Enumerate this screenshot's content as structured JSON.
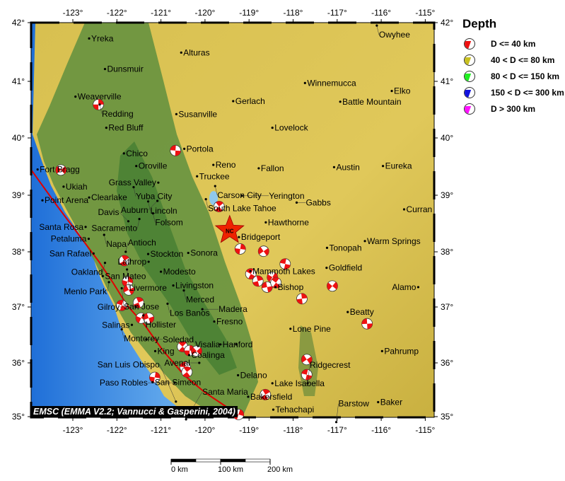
{
  "map": {
    "lon_ticks": [
      -123,
      -122,
      -121,
      -120,
      -119,
      -118,
      -117,
      -116,
      -115
    ],
    "lat_ticks": [
      42,
      41,
      40,
      39,
      38,
      37,
      36,
      35
    ],
    "lon_labels": [
      "-123°",
      "-122°",
      "-121°",
      "-120°",
      "-119°",
      "-118°",
      "-117°",
      "-116°",
      "-115°"
    ],
    "lat_labels": [
      "42°",
      "41°",
      "40°",
      "39°",
      "38°",
      "37°",
      "36°",
      "35°"
    ],
    "colors": {
      "ocean": "#3d8fe0",
      "land": "#d9c24a",
      "valley": "#5f8f3e",
      "fault": "#e00000",
      "event": "#ee1111",
      "station": "#ee2200"
    },
    "cities": [
      {
        "name": "Yreka",
        "lon": -122.63,
        "lat": 41.73
      },
      {
        "name": "Alturas",
        "lon": -120.54,
        "lat": 41.49
      },
      {
        "name": "Owyhee",
        "lon": -116.1,
        "lat": 41.95
      },
      {
        "name": "Dunsmuir",
        "lon": -122.27,
        "lat": 41.21
      },
      {
        "name": "Winnemucca",
        "lon": -117.73,
        "lat": 40.97
      },
      {
        "name": "Elko",
        "lon": -115.76,
        "lat": 40.83
      },
      {
        "name": "Weaverville",
        "lon": -122.94,
        "lat": 40.73
      },
      {
        "name": "Redding",
        "lon": -122.39,
        "lat": 40.59
      },
      {
        "name": "Gerlach",
        "lon": -119.36,
        "lat": 40.65
      },
      {
        "name": "Battle Mountain",
        "lon": -116.93,
        "lat": 40.64
      },
      {
        "name": "Susanville",
        "lon": -120.65,
        "lat": 40.42
      },
      {
        "name": "Red Bluff",
        "lon": -122.24,
        "lat": 40.18
      },
      {
        "name": "Lovelock",
        "lon": -118.47,
        "lat": 40.18
      },
      {
        "name": "Chico",
        "lon": -121.84,
        "lat": 39.73
      },
      {
        "name": "Portola",
        "lon": -120.47,
        "lat": 39.81
      },
      {
        "name": "Oroville",
        "lon": -121.56,
        "lat": 39.51
      },
      {
        "name": "Reno",
        "lon": -119.81,
        "lat": 39.53
      },
      {
        "name": "Fallon",
        "lon": -118.78,
        "lat": 39.47
      },
      {
        "name": "Austin",
        "lon": -117.07,
        "lat": 39.49
      },
      {
        "name": "Eureka",
        "lon": -115.96,
        "lat": 39.51
      },
      {
        "name": "Fort Bragg",
        "lon": -123.8,
        "lat": 39.45
      },
      {
        "name": "Ukiah",
        "lon": -123.21,
        "lat": 39.15
      },
      {
        "name": "Truckee",
        "lon": -120.18,
        "lat": 39.33
      },
      {
        "name": "Grass Valley",
        "lon": -121.06,
        "lat": 39.22
      },
      {
        "name": "Carson City",
        "lon": -119.77,
        "lat": 39.16
      },
      {
        "name": "Yuba City",
        "lon": -121.62,
        "lat": 39.14
      },
      {
        "name": "Clearlake",
        "lon": -122.63,
        "lat": 38.96
      },
      {
        "name": "South Lake Tahoe",
        "lon": -119.98,
        "lat": 38.93
      },
      {
        "name": "Yerington",
        "lon": -119.16,
        "lat": 38.99
      },
      {
        "name": "Point Arena",
        "lon": -123.69,
        "lat": 38.91
      },
      {
        "name": "Lincoln",
        "lon": -121.29,
        "lat": 38.89
      },
      {
        "name": "Auburn",
        "lon": -121.08,
        "lat": 38.9
      },
      {
        "name": "Gabbs",
        "lon": -117.92,
        "lat": 38.87
      },
      {
        "name": "Folsom",
        "lon": -121.18,
        "lat": 38.68
      },
      {
        "name": "Sacramento",
        "lon": -121.49,
        "lat": 38.58
      },
      {
        "name": "Davis",
        "lon": -121.74,
        "lat": 38.54
      },
      {
        "name": "Hawthorne",
        "lon": -118.62,
        "lat": 38.52
      },
      {
        "name": "Curran",
        "lon": -115.48,
        "lat": 38.75
      },
      {
        "name": "Santa Rosa",
        "lon": -122.71,
        "lat": 38.44
      },
      {
        "name": "Napa",
        "lon": -122.29,
        "lat": 38.3
      },
      {
        "name": "Bridgeport",
        "lon": -119.23,
        "lat": 38.26
      },
      {
        "name": "Petaluma",
        "lon": -122.64,
        "lat": 38.23
      },
      {
        "name": "Warm Springs",
        "lon": -116.37,
        "lat": 38.19
      },
      {
        "name": "Tonopah",
        "lon": -117.23,
        "lat": 38.07
      },
      {
        "name": "Stockton",
        "lon": -121.29,
        "lat": 37.96
      },
      {
        "name": "Sonora",
        "lon": -120.38,
        "lat": 37.98
      },
      {
        "name": "San Rafael",
        "lon": -122.53,
        "lat": 37.97
      },
      {
        "name": "Antioch",
        "lon": -121.8,
        "lat": 38.0
      },
      {
        "name": "Lathrop",
        "lon": -121.28,
        "lat": 37.82
      },
      {
        "name": "Oakland",
        "lon": -122.27,
        "lat": 37.8
      },
      {
        "name": "Mammoth Lakes",
        "lon": -118.97,
        "lat": 37.65
      },
      {
        "name": "Goldfield",
        "lon": -117.24,
        "lat": 37.71
      },
      {
        "name": "Modesto",
        "lon": -121.0,
        "lat": 37.64
      },
      {
        "name": "Livermore",
        "lon": -121.77,
        "lat": 37.68
      },
      {
        "name": "San Mateo",
        "lon": -122.32,
        "lat": 37.56
      },
      {
        "name": "Bishop",
        "lon": -118.4,
        "lat": 37.36
      },
      {
        "name": "Alamo",
        "lon": -115.16,
        "lat": 37.36
      },
      {
        "name": "Livingston",
        "lon": -120.72,
        "lat": 37.39
      },
      {
        "name": "Menlo Park",
        "lon": -122.18,
        "lat": 37.45
      },
      {
        "name": "San Jose",
        "lon": -121.89,
        "lat": 37.34
      },
      {
        "name": "Merced",
        "lon": -120.48,
        "lat": 37.3
      },
      {
        "name": "Los Banos",
        "lon": -120.85,
        "lat": 37.06
      },
      {
        "name": "Gilroy",
        "lon": -121.57,
        "lat": 37.0
      },
      {
        "name": "Madera",
        "lon": -120.06,
        "lat": 36.96
      },
      {
        "name": "Beatty",
        "lon": -116.76,
        "lat": 36.91
      },
      {
        "name": "Hollister",
        "lon": -121.4,
        "lat": 36.85
      },
      {
        "name": "Fresno",
        "lon": -119.79,
        "lat": 36.74
      },
      {
        "name": "Salinas",
        "lon": -121.66,
        "lat": 36.68
      },
      {
        "name": "Monterey",
        "lon": -121.89,
        "lat": 36.6
      },
      {
        "name": "Lone Pine",
        "lon": -118.06,
        "lat": 36.61
      },
      {
        "name": "Soledad",
        "lon": -121.33,
        "lat": 36.42
      },
      {
        "name": "Hanford",
        "lon": -119.65,
        "lat": 36.33
      },
      {
        "name": "Visalia",
        "lon": -119.29,
        "lat": 36.33
      },
      {
        "name": "King",
        "lon": -121.13,
        "lat": 36.21
      },
      {
        "name": "Coalinga",
        "lon": -120.36,
        "lat": 36.14
      },
      {
        "name": "Pahrump",
        "lon": -115.98,
        "lat": 36.21
      },
      {
        "name": "Avenal",
        "lon": -120.13,
        "lat": 36.0
      },
      {
        "name": "Delano",
        "lon": -119.25,
        "lat": 35.77
      },
      {
        "name": "Lake Isabella",
        "lon": -118.47,
        "lat": 35.62
      },
      {
        "name": "Ridgecrest",
        "lon": -117.67,
        "lat": 35.62
      },
      {
        "name": "San Simeon",
        "lon": -121.19,
        "lat": 35.64
      },
      {
        "name": "Paso Robles",
        "lon": -120.69,
        "lat": 35.63
      },
      {
        "name": "Bakersfield",
        "lon": -119.02,
        "lat": 35.37
      },
      {
        "name": "San Luis Obispo",
        "lon": -120.66,
        "lat": 35.28
      },
      {
        "name": "Baker",
        "lon": -116.07,
        "lat": 35.27
      },
      {
        "name": "Tehachapi",
        "lon": -118.45,
        "lat": 35.13
      },
      {
        "name": "Santa Maria",
        "lon": -120.43,
        "lat": 34.95
      },
      {
        "name": "Barstow",
        "lon": -117.02,
        "lat": 34.9
      }
    ],
    "events": [
      [
        -122.42,
        40.59
      ],
      [
        -123.27,
        39.44
      ],
      [
        -120.67,
        39.78
      ],
      [
        -119.68,
        38.8
      ],
      [
        -119.2,
        38.05
      ],
      [
        -118.67,
        38.01
      ],
      [
        -118.18,
        37.78
      ],
      [
        -121.83,
        37.84
      ],
      [
        -121.76,
        37.46
      ],
      [
        -121.73,
        37.31
      ],
      [
        -121.89,
        37.03
      ],
      [
        -121.51,
        37.08
      ],
      [
        -121.45,
        36.8
      ],
      [
        -121.28,
        36.8
      ],
      [
        -118.96,
        37.6
      ],
      [
        -118.8,
        37.47
      ],
      [
        -118.47,
        37.54
      ],
      [
        -118.59,
        37.36
      ],
      [
        -118.39,
        37.44
      ],
      [
        -117.8,
        37.15
      ],
      [
        -117.11,
        37.38
      ],
      [
        -116.32,
        36.7
      ],
      [
        -120.51,
        36.29
      ],
      [
        -120.35,
        36.22
      ],
      [
        -120.19,
        36.21
      ],
      [
        -120.45,
        35.92
      ],
      [
        -120.41,
        35.83
      ],
      [
        -121.14,
        35.73
      ],
      [
        -117.69,
        36.06
      ],
      [
        -117.69,
        35.78
      ],
      [
        -118.63,
        35.41
      ],
      [
        -119.24,
        35.04
      ]
    ],
    "station": {
      "code": "NC",
      "lon": -119.44,
      "lat": 38.38
    },
    "credit": "EMSC (EMMA V2.2; Vannucci & Gasperini, 2004)"
  },
  "legend": {
    "title": "Depth",
    "items": [
      {
        "label": "D <= 40 km",
        "color": "#ee1111"
      },
      {
        "label": "40 < D <= 80 km",
        "color": "#c8c020"
      },
      {
        "label": "80 < D <= 150 km",
        "color": "#22ee22"
      },
      {
        "label": "150 < D <= 300 km",
        "color": "#1111dd"
      },
      {
        "label": "D > 300 km",
        "color": "#ff11ff"
      }
    ]
  },
  "scale_bar": {
    "labels": [
      "0 km",
      "100 km",
      "200 km"
    ]
  }
}
